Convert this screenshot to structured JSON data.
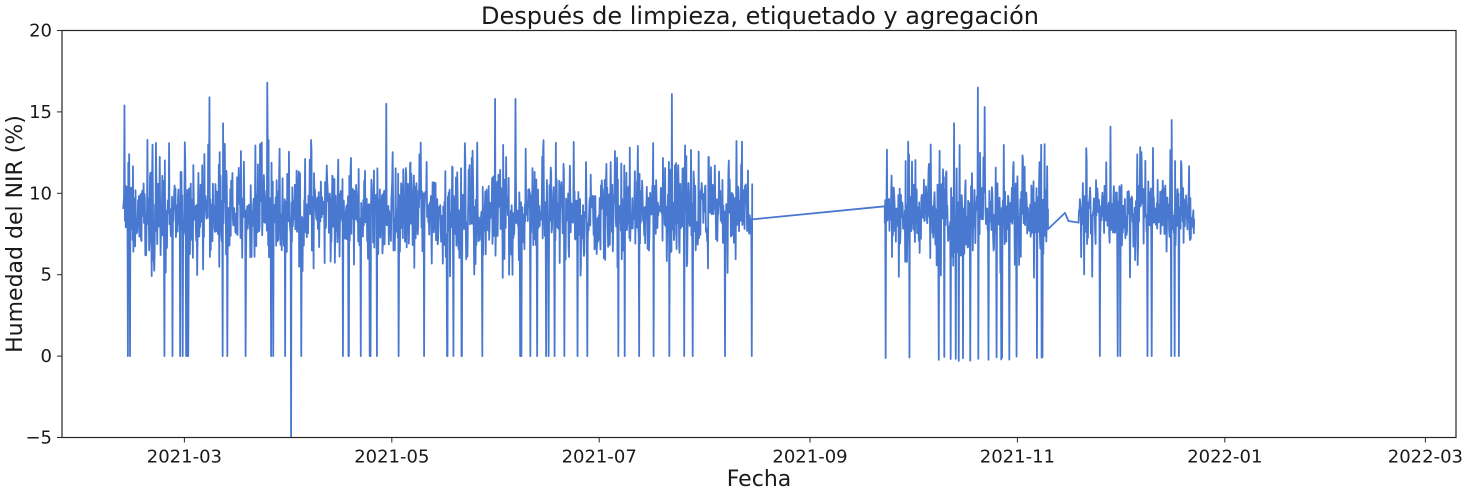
{
  "chart_data": {
    "type": "line",
    "title": "Después de limpieza, etiquetado y agregación",
    "xlabel": "Fecha",
    "ylabel": "Humedad del NIR (%)",
    "xlim": [
      "2021-01-24",
      "2022-03-10"
    ],
    "ylim": [
      -5,
      20
    ],
    "x_ticks": [
      "2021-03",
      "2021-05",
      "2021-07",
      "2021-09",
      "2021-11",
      "2022-01",
      "2022-03"
    ],
    "y_ticks": [
      -5,
      0,
      5,
      10,
      15,
      20
    ],
    "grid": false,
    "legend": "none",
    "line_color": "#4878cf",
    "series": [
      {
        "segments": [
          {
            "start": "2021-02-11",
            "end": "2021-08-15",
            "base": 8.8,
            "spread": 1.6,
            "max": 16.8,
            "min": -5,
            "notes": "dense noisy daily-ish readings with frequent drops to 0"
          },
          {
            "start": "2021-08-15",
            "end": "2021-09-23",
            "gap_line": [
              [
                "2021-08-15",
                8.4
              ],
              [
                "2021-09-23",
                9.2
              ]
            ]
          },
          {
            "start": "2021-09-23",
            "end": "2021-11-10",
            "base": 8.7,
            "spread": 1.5,
            "max": 16.5,
            "min": -0.5
          },
          {
            "start": "2021-11-10",
            "end": "2021-11-19",
            "gap_line": [
              [
                "2021-11-10",
                7.8
              ],
              [
                "2021-11-16",
                8.3
              ],
              [
                "2021-11-15",
                8.8
              ],
              [
                "2021-11-19",
                8.2
              ]
            ]
          },
          {
            "start": "2021-11-19",
            "end": "2021-12-23",
            "base": 8.8,
            "spread": 1.3,
            "max": 14.5,
            "min": 0.1
          }
        ],
        "spikes": [
          [
            "2021-02-11",
            15.4
          ],
          [
            "2021-03-08",
            15.9
          ],
          [
            "2021-03-12",
            14.3
          ],
          [
            "2021-03-25",
            16.8
          ],
          [
            "2021-04-01",
            -5
          ],
          [
            "2021-04-29",
            15.5
          ],
          [
            "2021-05-31",
            15.8
          ],
          [
            "2021-06-06",
            15.8
          ],
          [
            "2021-07-22",
            16.1
          ],
          [
            "2021-10-20",
            16.5
          ],
          [
            "2021-10-22",
            15.3
          ],
          [
            "2021-10-13",
            14.3
          ],
          [
            "2021-11-28",
            14.1
          ],
          [
            "2021-12-16",
            14.5
          ],
          [
            "2021-12-23",
            13.5
          ]
        ]
      }
    ]
  }
}
